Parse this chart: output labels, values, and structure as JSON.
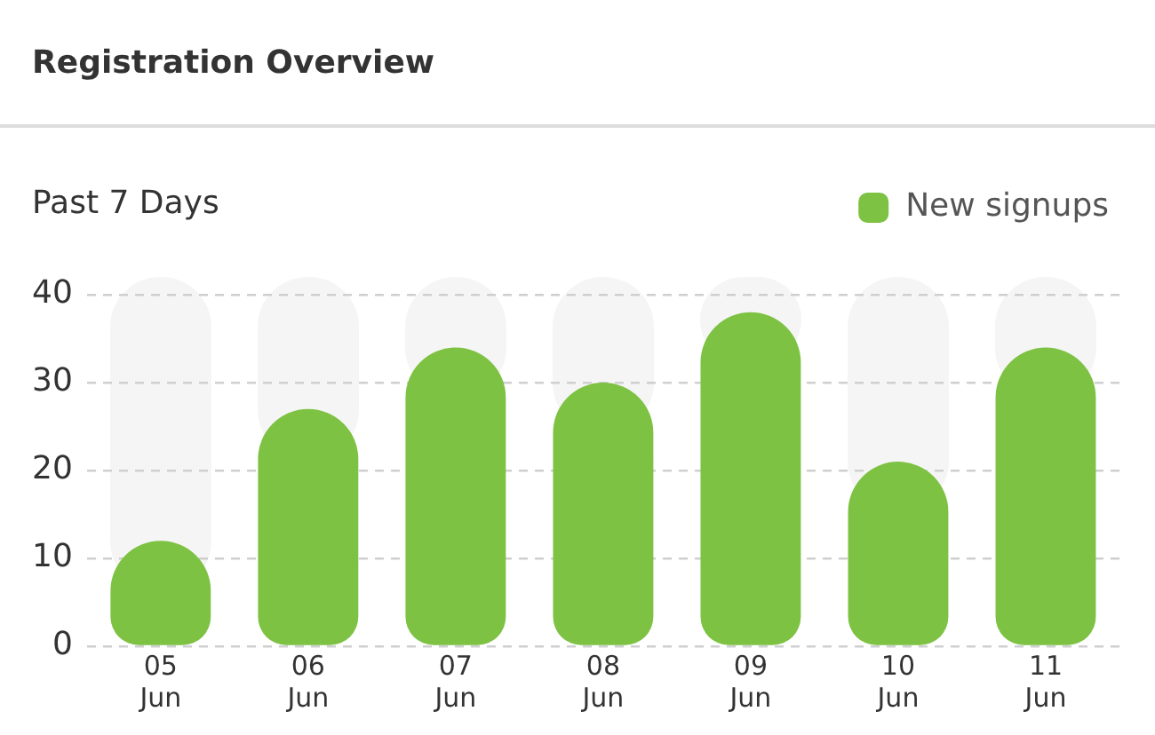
{
  "chart_data": {
    "type": "bar",
    "title": "Registration Overview",
    "subtitle": "Past 7 Days",
    "categories": [
      "05\nJun",
      "06\nJun",
      "07\nJun",
      "08\nJun",
      "09\nJun",
      "10\nJun",
      "11\nJun"
    ],
    "series": [
      {
        "name": "New signups",
        "color": "#7dc243",
        "values": [
          12,
          27,
          34,
          30,
          38,
          21,
          34
        ]
      }
    ],
    "ylim": [
      0,
      40
    ],
    "yticks": [
      0,
      10,
      20,
      30,
      40
    ],
    "grid": "y",
    "legend": "top right"
  }
}
